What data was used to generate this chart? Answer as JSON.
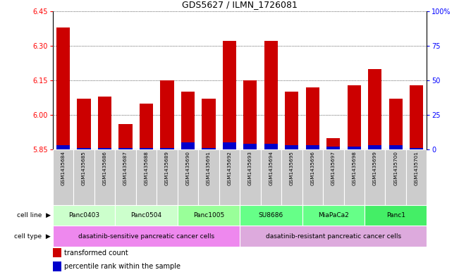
{
  "title": "GDS5627 / ILMN_1726081",
  "samples": [
    "GSM1435684",
    "GSM1435685",
    "GSM1435686",
    "GSM1435687",
    "GSM1435688",
    "GSM1435689",
    "GSM1435690",
    "GSM1435691",
    "GSM1435692",
    "GSM1435693",
    "GSM1435694",
    "GSM1435695",
    "GSM1435696",
    "GSM1435697",
    "GSM1435698",
    "GSM1435699",
    "GSM1435700",
    "GSM1435701"
  ],
  "transformed_count": [
    6.38,
    6.07,
    6.08,
    5.96,
    6.05,
    6.15,
    6.1,
    6.07,
    6.32,
    6.15,
    6.32,
    6.1,
    6.12,
    5.9,
    6.13,
    6.2,
    6.07,
    6.13
  ],
  "percentile_rank": [
    3,
    1,
    1,
    1,
    1,
    1,
    5,
    1,
    5,
    4,
    4,
    3,
    3,
    2,
    2,
    3,
    3,
    1
  ],
  "ylim_left": [
    5.85,
    6.45
  ],
  "ylim_right": [
    0,
    100
  ],
  "yticks_left": [
    5.85,
    6.0,
    6.15,
    6.3,
    6.45
  ],
  "yticks_right": [
    0,
    25,
    50,
    75,
    100
  ],
  "bar_color": "#cc0000",
  "percentile_color": "#0000cc",
  "cell_lines": [
    {
      "label": "Panc0403",
      "start": 0,
      "end": 3,
      "color": "#ccffcc"
    },
    {
      "label": "Panc0504",
      "start": 3,
      "end": 6,
      "color": "#ccffcc"
    },
    {
      "label": "Panc1005",
      "start": 6,
      "end": 9,
      "color": "#99ff99"
    },
    {
      "label": "SU8686",
      "start": 9,
      "end": 12,
      "color": "#66ff88"
    },
    {
      "label": "MiaPaCa2",
      "start": 12,
      "end": 15,
      "color": "#66ff88"
    },
    {
      "label": "Panc1",
      "start": 15,
      "end": 18,
      "color": "#44ee66"
    }
  ],
  "cell_types": [
    {
      "label": "dasatinib-sensitive pancreatic cancer cells",
      "start": 0,
      "end": 9,
      "color": "#ee88ee"
    },
    {
      "label": "dasatinib-resistant pancreatic cancer cells",
      "start": 9,
      "end": 18,
      "color": "#ddaadd"
    }
  ],
  "cell_line_label": "cell line",
  "cell_type_label": "cell type",
  "legend_items": [
    {
      "color": "#cc0000",
      "label": "transformed count"
    },
    {
      "color": "#0000cc",
      "label": "percentile rank within the sample"
    }
  ],
  "sample_box_color": "#cccccc",
  "left_label_color": "#555555"
}
